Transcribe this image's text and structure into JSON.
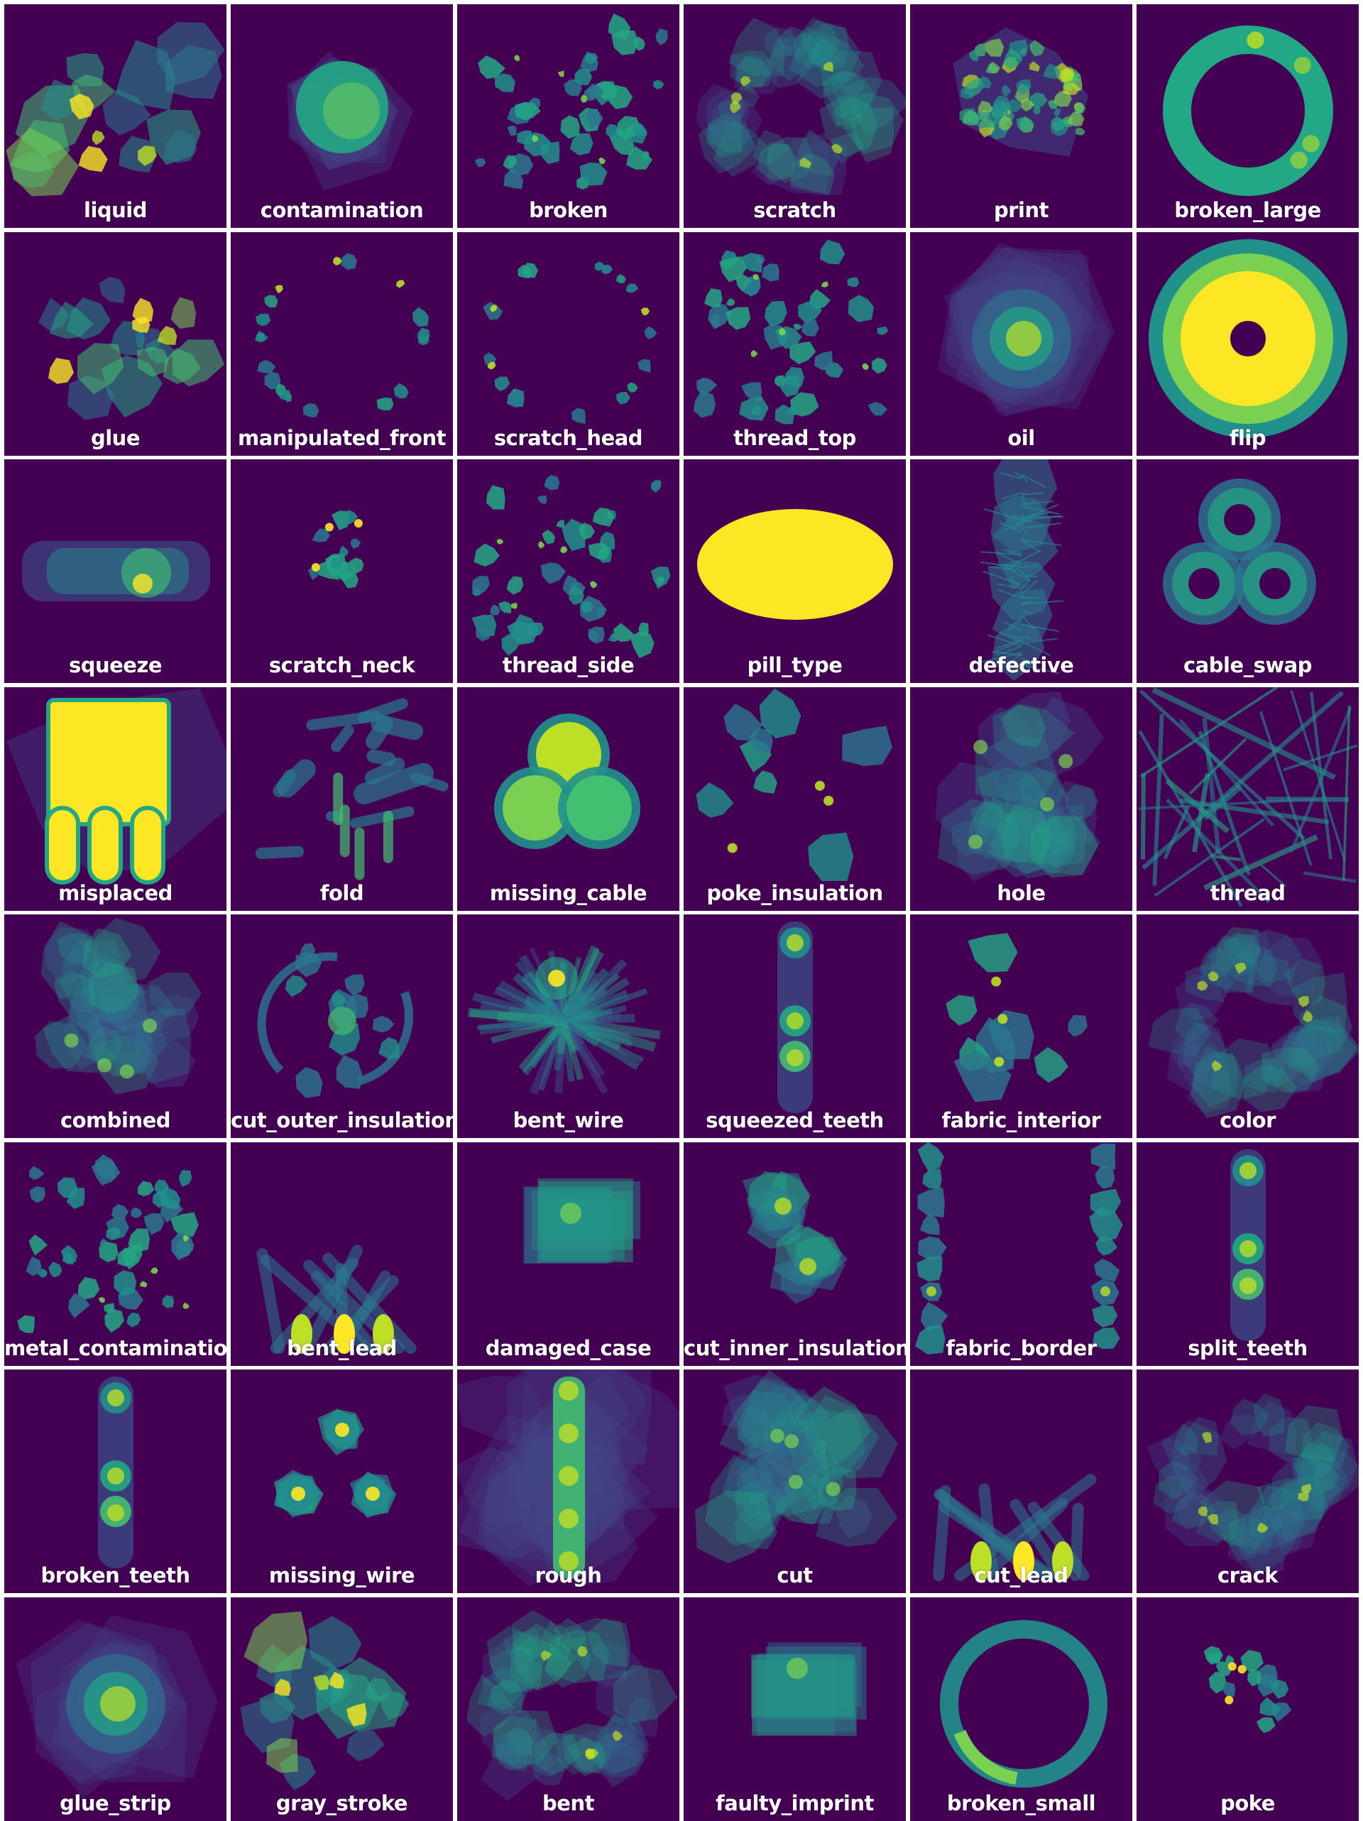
{
  "palette": {
    "background": "#440154",
    "blob_colors": [
      "#414487",
      "#3b528b",
      "#2a788e",
      "#21918c",
      "#22a884",
      "#43bf71",
      "#7ad151",
      "#bddf26",
      "#fde725"
    ]
  },
  "tiles": [
    {
      "label": "liquid",
      "shape": "blobs"
    },
    {
      "label": "contamination",
      "shape": "disc"
    },
    {
      "label": "broken",
      "shape": "scatter"
    },
    {
      "label": "scratch",
      "shape": "ring-haze"
    },
    {
      "label": "print",
      "shape": "speckle"
    },
    {
      "label": "broken_large",
      "shape": "ring"
    },
    {
      "label": "glue",
      "shape": "blobs"
    },
    {
      "label": "manipulated_front",
      "shape": "circle-scatter"
    },
    {
      "label": "scratch_head",
      "shape": "circle-scatter"
    },
    {
      "label": "thread_top",
      "shape": "scatter"
    },
    {
      "label": "oil",
      "shape": "soft-disc"
    },
    {
      "label": "flip",
      "shape": "thick-ring"
    },
    {
      "label": "squeeze",
      "shape": "capsule"
    },
    {
      "label": "scratch_neck",
      "shape": "small-cluster"
    },
    {
      "label": "thread_side",
      "shape": "scatter"
    },
    {
      "label": "pill_type",
      "shape": "ellipse"
    },
    {
      "label": "defective",
      "shape": "column-spiky"
    },
    {
      "label": "cable_swap",
      "shape": "three-rings"
    },
    {
      "label": "misplaced",
      "shape": "rect-fingers"
    },
    {
      "label": "fold",
      "shape": "strokes"
    },
    {
      "label": "missing_cable",
      "shape": "three-discs"
    },
    {
      "label": "poke_insulation",
      "shape": "few-blobs"
    },
    {
      "label": "hole",
      "shape": "haze"
    },
    {
      "label": "thread",
      "shape": "lines"
    },
    {
      "label": "combined",
      "shape": "haze"
    },
    {
      "label": "cut_outer_insulation",
      "shape": "arcs"
    },
    {
      "label": "bent_wire",
      "shape": "spiky"
    },
    {
      "label": "squeezed_teeth",
      "shape": "vertical-column"
    },
    {
      "label": "fabric_interior",
      "shape": "few-blobs"
    },
    {
      "label": "color",
      "shape": "ring-haze"
    },
    {
      "label": "metal_contamination",
      "shape": "scatter"
    },
    {
      "label": "bent_lead",
      "shape": "leads"
    },
    {
      "label": "damaged_case",
      "shape": "center-rect"
    },
    {
      "label": "cut_inner_insulation",
      "shape": "two-blobs"
    },
    {
      "label": "fabric_border",
      "shape": "border-columns"
    },
    {
      "label": "split_teeth",
      "shape": "vertical-column"
    },
    {
      "label": "broken_teeth",
      "shape": "vertical-column"
    },
    {
      "label": "missing_wire",
      "shape": "three-dots"
    },
    {
      "label": "rough",
      "shape": "vertical-bar"
    },
    {
      "label": "cut",
      "shape": "haze"
    },
    {
      "label": "cut_lead",
      "shape": "leads"
    },
    {
      "label": "crack",
      "shape": "ring-haze"
    },
    {
      "label": "glue_strip",
      "shape": "soft-disc"
    },
    {
      "label": "gray_stroke",
      "shape": "blobs"
    },
    {
      "label": "bent",
      "shape": "ring-haze"
    },
    {
      "label": "faulty_imprint",
      "shape": "center-rect"
    },
    {
      "label": "broken_small",
      "shape": "thin-ring"
    },
    {
      "label": "poke",
      "shape": "small-cluster"
    }
  ]
}
